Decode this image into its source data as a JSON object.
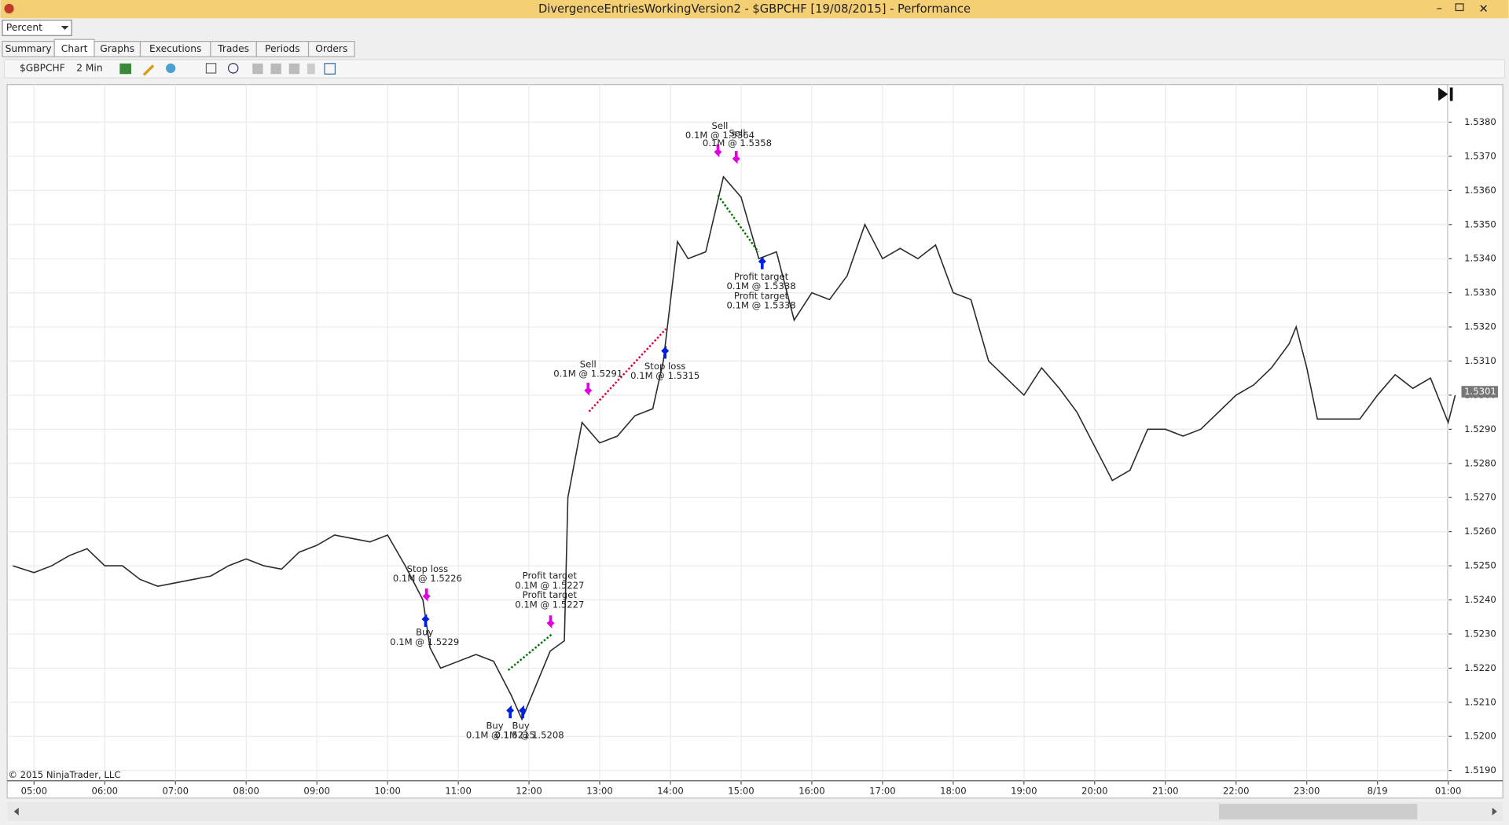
{
  "window": {
    "title": "DivergenceEntriesWorkingVersion2 - $GBPCHF [19/08/2015] - Performance"
  },
  "view_select": "Percent",
  "tabs": [
    "Summary",
    "Chart",
    "Graphs",
    "Executions",
    "Trades",
    "Periods",
    "Orders"
  ],
  "toolbar": {
    "instrument": "$GBPCHF",
    "interval": "2 Min"
  },
  "chart_data": {
    "type": "line",
    "x": [
      4.7,
      5,
      5.25,
      5.5,
      5.75,
      6,
      6.25,
      6.5,
      6.75,
      7,
      7.25,
      7.5,
      7.75,
      8,
      8.25,
      8.5,
      8.75,
      9,
      9.25,
      9.5,
      9.75,
      10,
      10.25,
      10.5,
      10.6,
      10.75,
      11,
      11.25,
      11.5,
      11.75,
      11.9,
      12.1,
      12.3,
      12.5,
      12.55,
      12.75,
      13,
      13.25,
      13.5,
      13.75,
      13.9,
      14.1,
      14.25,
      14.5,
      14.75,
      15,
      15.25,
      15.5,
      15.75,
      16,
      16.25,
      16.5,
      16.75,
      17,
      17.25,
      17.5,
      17.75,
      18,
      18.25,
      18.5,
      18.75,
      19,
      19.25,
      19.5,
      19.75,
      20,
      20.25,
      20.5,
      20.75,
      21,
      21.25,
      21.5,
      21.75,
      22,
      22.25,
      22.5,
      22.75,
      22.85,
      23,
      23.15,
      23.5,
      23.75,
      24,
      24.25,
      24.5,
      24.75,
      25,
      25.1
    ],
    "series": [
      {
        "name": "$GBPCHF",
        "color": "#2b2b2b",
        "values": [
          1.525,
          1.5248,
          1.525,
          1.5253,
          1.5255,
          1.525,
          1.525,
          1.5246,
          1.5244,
          1.5245,
          1.5246,
          1.5247,
          1.525,
          1.5252,
          1.525,
          1.5249,
          1.5254,
          1.5256,
          1.5259,
          1.5258,
          1.5257,
          1.5259,
          1.525,
          1.524,
          1.5226,
          1.522,
          1.5222,
          1.5224,
          1.5222,
          1.5212,
          1.5205,
          1.5215,
          1.5225,
          1.5228,
          1.527,
          1.5292,
          1.5286,
          1.5288,
          1.5294,
          1.5296,
          1.531,
          1.5345,
          1.534,
          1.5342,
          1.5364,
          1.5358,
          1.534,
          1.5342,
          1.5322,
          1.533,
          1.5328,
          1.5335,
          1.535,
          1.534,
          1.5343,
          1.534,
          1.5344,
          1.533,
          1.5328,
          1.531,
          1.5305,
          1.53,
          1.5308,
          1.5302,
          1.5295,
          1.5285,
          1.5275,
          1.5278,
          1.529,
          1.529,
          1.5288,
          1.529,
          1.5295,
          1.53,
          1.5303,
          1.5308,
          1.5315,
          1.532,
          1.5308,
          1.5293,
          1.5293,
          1.5293,
          1.53,
          1.5306,
          1.5302,
          1.5305,
          1.5292,
          1.53
        ]
      }
    ],
    "xlim": [
      4.62,
      25.16
    ],
    "xticks": [
      {
        "value": 5,
        "label": "05:00"
      },
      {
        "value": 6,
        "label": "06:00"
      },
      {
        "value": 7,
        "label": "07:00"
      },
      {
        "value": 8,
        "label": "08:00"
      },
      {
        "value": 9,
        "label": "09:00"
      },
      {
        "value": 10,
        "label": "10:00"
      },
      {
        "value": 11,
        "label": "11:00"
      },
      {
        "value": 12,
        "label": "12:00"
      },
      {
        "value": 13,
        "label": "13:00"
      },
      {
        "value": 14,
        "label": "14:00"
      },
      {
        "value": 15,
        "label": "15:00"
      },
      {
        "value": 16,
        "label": "16:00"
      },
      {
        "value": 17,
        "label": "17:00"
      },
      {
        "value": 18,
        "label": "18:00"
      },
      {
        "value": 19,
        "label": "19:00"
      },
      {
        "value": 20,
        "label": "20:00"
      },
      {
        "value": 21,
        "label": "21:00"
      },
      {
        "value": 22,
        "label": "22:00"
      },
      {
        "value": 23,
        "label": "23:00"
      },
      {
        "value": 24,
        "label": "8/19"
      },
      {
        "value": 25,
        "label": "01:00"
      }
    ],
    "ylim": [
      1.5187,
      1.5391
    ],
    "yticks": [
      {
        "value": 1.519,
        "label": "1.5190"
      },
      {
        "value": 1.52,
        "label": "1.5200"
      },
      {
        "value": 1.521,
        "label": "1.5210"
      },
      {
        "value": 1.522,
        "label": "1.5220"
      },
      {
        "value": 1.523,
        "label": "1.5230"
      },
      {
        "value": 1.524,
        "label": "1.5240"
      },
      {
        "value": 1.525,
        "label": "1.5250"
      },
      {
        "value": 1.526,
        "label": "1.5260"
      },
      {
        "value": 1.527,
        "label": "1.5270"
      },
      {
        "value": 1.528,
        "label": "1.5280"
      },
      {
        "value": 1.529,
        "label": "1.5290"
      },
      {
        "value": 1.53,
        "label": "1.5300"
      },
      {
        "value": 1.531,
        "label": "1.5310"
      },
      {
        "value": 1.532,
        "label": "1.5320"
      },
      {
        "value": 1.533,
        "label": "1.5330"
      },
      {
        "value": 1.534,
        "label": "1.5340"
      },
      {
        "value": 1.535,
        "label": "1.5350"
      },
      {
        "value": 1.536,
        "label": "1.5360"
      },
      {
        "value": 1.537,
        "label": "1.5370"
      },
      {
        "value": 1.538,
        "label": "1.5380"
      }
    ],
    "grid": true,
    "last_price": {
      "value": 1.5301,
      "label": "1.5301"
    },
    "annotations": [
      "Sell",
      "0.1M @ 1.5364",
      "Sell",
      "0.1M @ 1.5358",
      "Profit target",
      "0.1M @ 1.5338",
      "Profit target",
      "0.1M @ 1.5338",
      "Sell",
      "0.1M @ 1.5291",
      "Stop loss",
      "0.1M @ 1.5315",
      "Stop loss",
      "0.1M @ 1.5226",
      "Buy",
      "0.1M @ 1.5229",
      "Profit target",
      "0.1M @ 1.5227",
      "Profit target",
      "0.1M @ 1.5227",
      "Buy",
      "0.1M @ 1.5215",
      "Buy",
      "0.1M @ 1.5208"
    ],
    "copyright": "© 2015 NinjaTrader, LLC"
  }
}
